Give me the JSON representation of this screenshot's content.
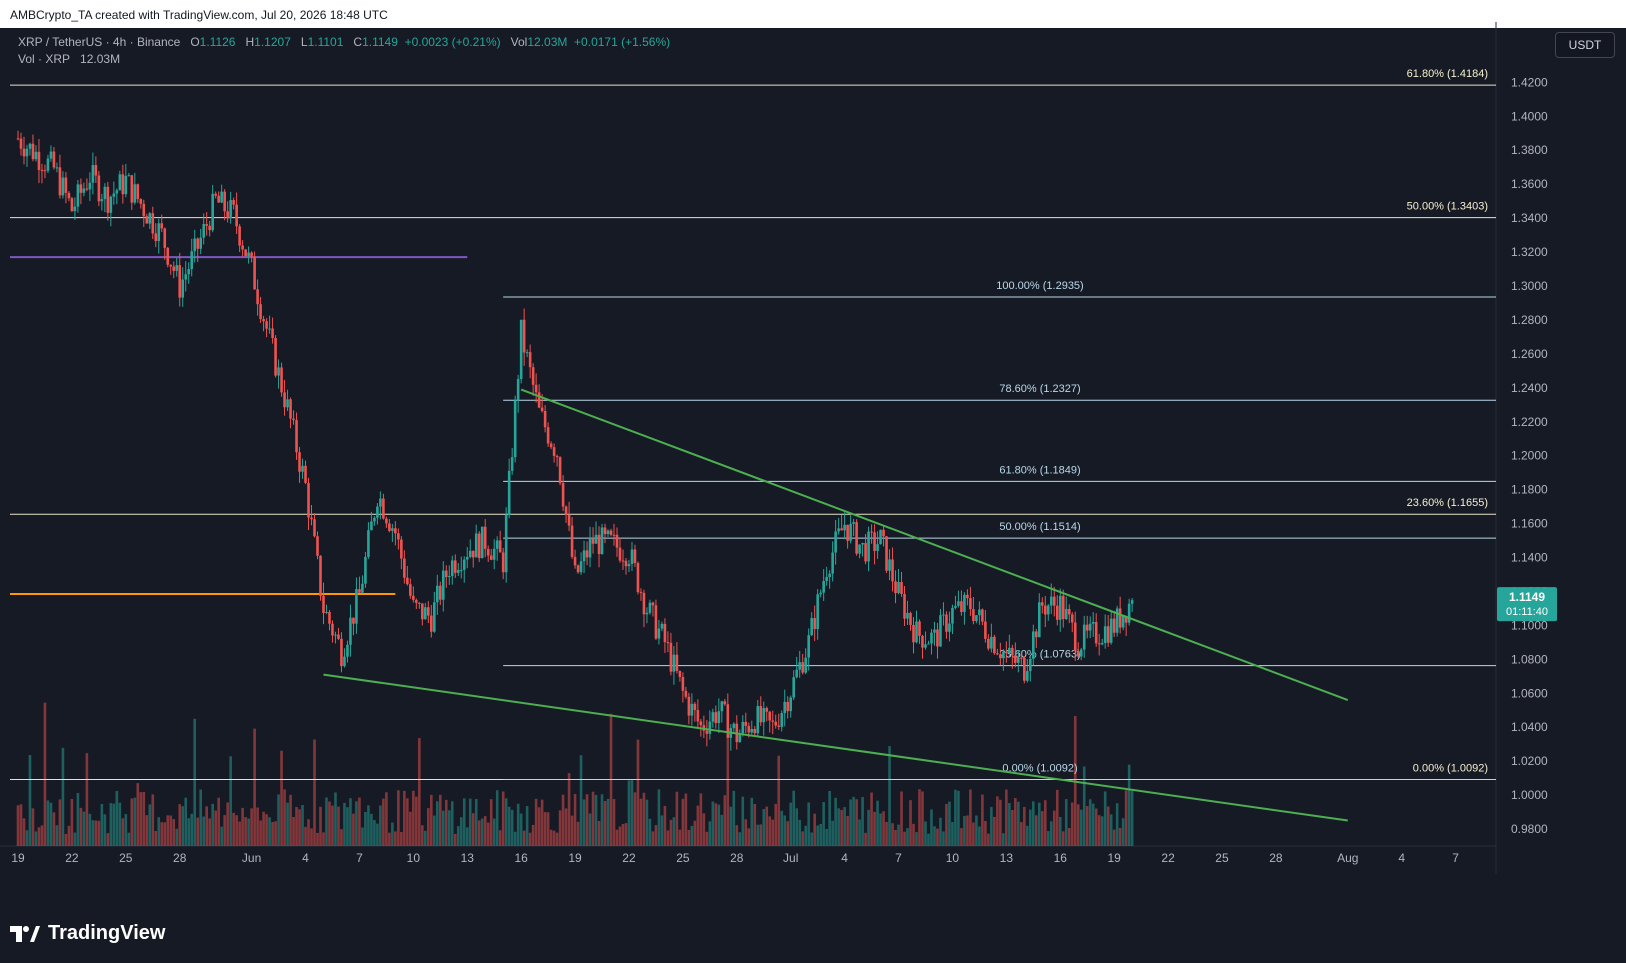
{
  "header": {
    "attribution": "AMBCrypto_TA created with TradingView.com, Jul 20, 2026 18:48 UTC"
  },
  "legend": {
    "symbol": "XRP / TetherUS · 4h · Binance",
    "o_label": "O",
    "o": "1.1126",
    "h_label": "H",
    "h": "1.1207",
    "l_label": "L",
    "l": "1.1101",
    "c_label": "C",
    "c": "1.1149",
    "change": "+0.0023 (+0.21%)",
    "vol_label": "Vol",
    "vol": "12.03M",
    "vol_change": "+0.0171 (+1.56%)",
    "vol_line": "Vol · XRP",
    "vol_line_value": "12.03M"
  },
  "currency": "USDT",
  "footer": {
    "brand": "TradingView"
  },
  "colors": {
    "background": "#161a25",
    "up": "#26a69a",
    "down": "#ef5350",
    "fib_right": "#ffffff",
    "fib_mid": "#b8d8e8",
    "trend": "#4caf50",
    "purple": "#7e57c2",
    "orange": "#ff9800",
    "price_badge": "#26a69a"
  },
  "chart_data": {
    "type": "candlestick",
    "title": "",
    "timeframe": "4h",
    "ylim": [
      0.97,
      1.432
    ],
    "y_ticks": [
      "1.4200",
      "1.4000",
      "1.3800",
      "1.3600",
      "1.3400",
      "1.3200",
      "1.3000",
      "1.2800",
      "1.2600",
      "1.2400",
      "1.2200",
      "1.2000",
      "1.1800",
      "1.1600",
      "1.1400",
      "1.1200",
      "1.1000",
      "1.0800",
      "1.0600",
      "1.0400",
      "1.0200",
      "1.0000",
      "0.9800"
    ],
    "x_ticks": [
      "19",
      "22",
      "25",
      "28",
      "Jun",
      "4",
      "7",
      "10",
      "13",
      "16",
      "19",
      "22",
      "25",
      "28",
      "Jul",
      "4",
      "7",
      "10",
      "13",
      "16",
      "19",
      "22",
      "25",
      "28",
      "Aug",
      "4",
      "7"
    ],
    "current_price": "1.1149",
    "countdown": "01:11:40",
    "price_path": [
      {
        "date": "May 19",
        "close": 1.387
      },
      {
        "date": "May 21",
        "close": 1.369
      },
      {
        "date": "May 22",
        "close": 1.345
      },
      {
        "date": "May 23",
        "close": 1.365
      },
      {
        "date": "May 24",
        "close": 1.352
      },
      {
        "date": "May 25",
        "close": 1.362
      },
      {
        "date": "May 27",
        "close": 1.33
      },
      {
        "date": "May 28",
        "close": 1.3
      },
      {
        "date": "May 29",
        "close": 1.323
      },
      {
        "date": "May 30",
        "close": 1.35
      },
      {
        "date": "May 31",
        "close": 1.342
      },
      {
        "date": "Jun 1",
        "close": 1.31
      },
      {
        "date": "Jun 2",
        "close": 1.268
      },
      {
        "date": "Jun 3",
        "close": 1.228
      },
      {
        "date": "Jun 4",
        "close": 1.182
      },
      {
        "date": "Jun 5",
        "close": 1.11
      },
      {
        "date": "Jun 6",
        "close": 1.085
      },
      {
        "date": "Jun 7",
        "close": 1.118
      },
      {
        "date": "Jun 8",
        "close": 1.178
      },
      {
        "date": "Jun 9",
        "close": 1.155
      },
      {
        "date": "Jun 10",
        "close": 1.11
      },
      {
        "date": "Jun 11",
        "close": 1.105
      },
      {
        "date": "Jun 12",
        "close": 1.135
      },
      {
        "date": "Jun 13",
        "close": 1.145
      },
      {
        "date": "Jun 14",
        "close": 1.15
      },
      {
        "date": "Jun 15",
        "close": 1.138
      },
      {
        "date": "Jun 16",
        "close": 1.272
      },
      {
        "date": "Jun 17",
        "close": 1.225
      },
      {
        "date": "Jun 18",
        "close": 1.202
      },
      {
        "date": "Jun 19",
        "close": 1.128
      },
      {
        "date": "Jun 20",
        "close": 1.15
      },
      {
        "date": "Jun 21",
        "close": 1.148
      },
      {
        "date": "Jun 22",
        "close": 1.143
      },
      {
        "date": "Jun 23",
        "close": 1.11
      },
      {
        "date": "Jun 24",
        "close": 1.09
      },
      {
        "date": "Jun 25",
        "close": 1.06
      },
      {
        "date": "Jun 26",
        "close": 1.04
      },
      {
        "date": "Jun 27",
        "close": 1.05
      },
      {
        "date": "Jun 28",
        "close": 1.035
      },
      {
        "date": "Jun 29",
        "close": 1.045
      },
      {
        "date": "Jun 30",
        "close": 1.04
      },
      {
        "date": "Jul 1",
        "close": 1.062
      },
      {
        "date": "Jul 2",
        "close": 1.09
      },
      {
        "date": "Jul 3",
        "close": 1.135
      },
      {
        "date": "Jul 4",
        "close": 1.16
      },
      {
        "date": "Jul 5",
        "close": 1.145
      },
      {
        "date": "Jul 6",
        "close": 1.15
      },
      {
        "date": "Jul 7",
        "close": 1.118
      },
      {
        "date": "Jul 8",
        "close": 1.095
      },
      {
        "date": "Jul 9",
        "close": 1.092
      },
      {
        "date": "Jul 10",
        "close": 1.108
      },
      {
        "date": "Jul 11",
        "close": 1.112
      },
      {
        "date": "Jul 12",
        "close": 1.095
      },
      {
        "date": "Jul 13",
        "close": 1.082
      },
      {
        "date": "Jul 14",
        "close": 1.075
      },
      {
        "date": "Jul 15",
        "close": 1.112
      },
      {
        "date": "Jul 16",
        "close": 1.112
      },
      {
        "date": "Jul 17",
        "close": 1.09
      },
      {
        "date": "Jul 18",
        "close": 1.095
      },
      {
        "date": "Jul 19",
        "close": 1.1
      },
      {
        "date": "Jul 20",
        "close": 1.1149
      }
    ],
    "fib_levels_right": [
      {
        "label": "61.80% (1.4184)",
        "price": 1.4184
      },
      {
        "label": "50.00% (1.3403)",
        "price": 1.3403
      },
      {
        "label": "23.60% (1.1655)",
        "price": 1.1655
      },
      {
        "label": "0.00% (1.0092)",
        "price": 1.0092
      }
    ],
    "fib_levels_mid": [
      {
        "label": "100.00% (1.2935)",
        "price": 1.2935
      },
      {
        "label": "78.60% (1.2327)",
        "price": 1.2327
      },
      {
        "label": "61.80% (1.1849)",
        "price": 1.1849
      },
      {
        "label": "50.00% (1.1514)",
        "price": 1.1514
      },
      {
        "label": "23.60% (1.0763)",
        "price": 1.0763
      },
      {
        "label": "0.00% (1.0092)",
        "price": 1.0092
      }
    ],
    "horizontal_lines": [
      {
        "color": "purple",
        "price": 1.317,
        "from": "May 19",
        "to": "Jun 13"
      },
      {
        "color": "orange",
        "price": 1.1185,
        "from": "May 19",
        "to": "Jun 9"
      }
    ],
    "trendlines": [
      {
        "from_date": "Jun 16",
        "from_price": 1.239,
        "to_date": "Aug 1",
        "to_price": 1.056
      },
      {
        "from_date": "Jun 5",
        "from_price": 1.071,
        "to_date": "Aug 1",
        "to_price": 0.985
      }
    ],
    "grid": false,
    "volume": "shown"
  }
}
